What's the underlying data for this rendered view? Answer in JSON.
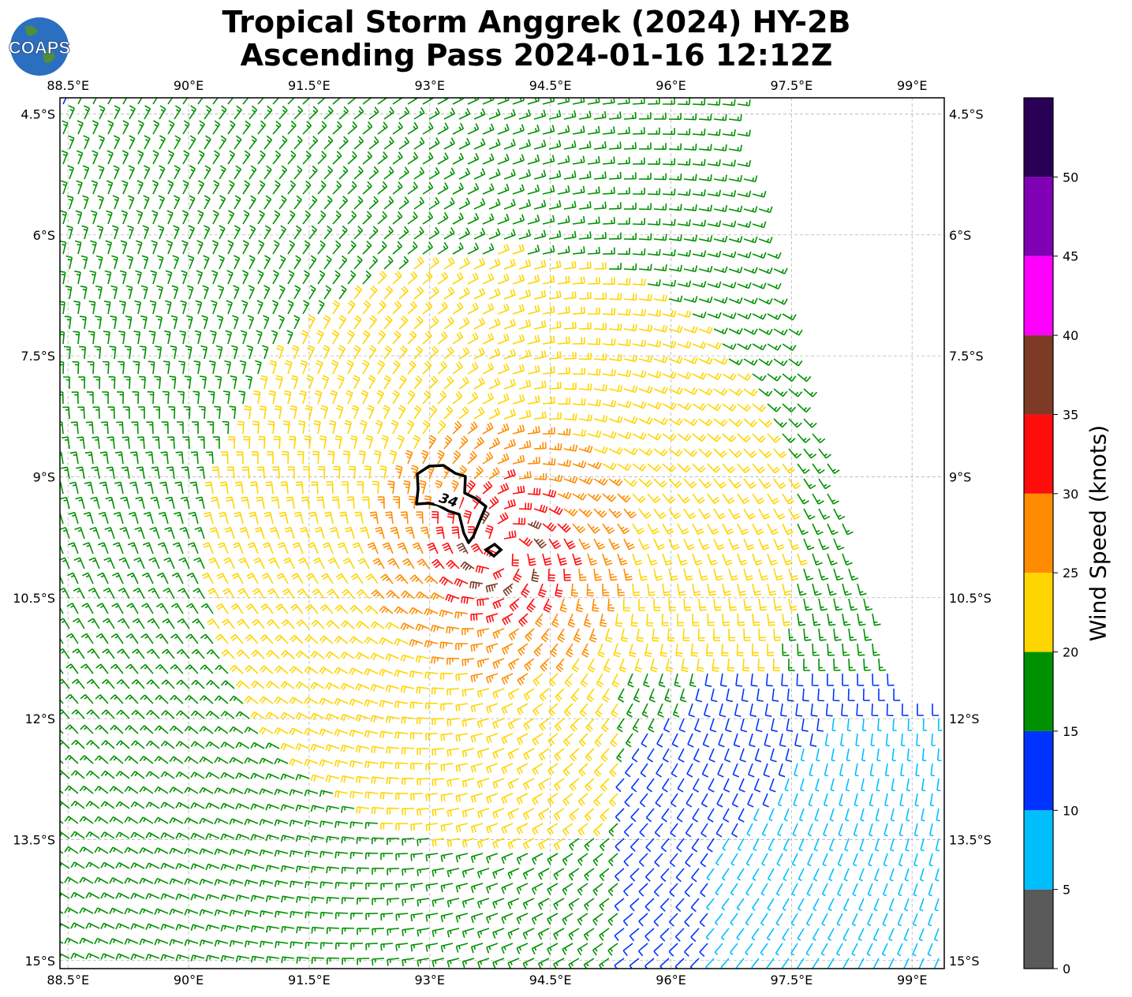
{
  "title": {
    "line1": "Tropical Storm Anggrek (2024) HY-2B",
    "line2": "Ascending Pass 2024-01-16 12:12Z"
  },
  "logo": {
    "text": "COAPS",
    "icon": "globe-icon"
  },
  "map": {
    "lon_range": [
      88.4,
      99.4
    ],
    "lat_range": [
      -15.1,
      -4.3
    ],
    "lon_ticks": [
      "88.5°E",
      "90°E",
      "91.5°E",
      "93°E",
      "94.5°E",
      "96°E",
      "97.5°E",
      "99°E"
    ],
    "lat_ticks": [
      "4.5°S",
      "6°S",
      "7.5°S",
      "9°S",
      "10.5°S",
      "12°S",
      "13.5°S",
      "15°S"
    ],
    "gridlines": true,
    "storm_center": {
      "lon": 93.9,
      "lat": -9.9
    },
    "contour_label": "34",
    "swath_edge_note": "data missing east of swath"
  },
  "colorbar": {
    "label": "Wind Speed (knots)",
    "ticks": [
      "0",
      "5",
      "10",
      "15",
      "20",
      "25",
      "30",
      "35",
      "40",
      "45",
      "50"
    ],
    "bins": [
      {
        "min": 0,
        "max": 5,
        "color": "#595959"
      },
      {
        "min": 5,
        "max": 10,
        "color": "#00bfff"
      },
      {
        "min": 10,
        "max": 15,
        "color": "#0033ff"
      },
      {
        "min": 15,
        "max": 20,
        "color": "#009100"
      },
      {
        "min": 20,
        "max": 25,
        "color": "#ffd500"
      },
      {
        "min": 25,
        "max": 30,
        "color": "#ff8c00"
      },
      {
        "min": 30,
        "max": 35,
        "color": "#ff0d0d"
      },
      {
        "min": 35,
        "max": 40,
        "color": "#7d3a24"
      },
      {
        "min": 40,
        "max": 45,
        "color": "#ff00ff"
      },
      {
        "min": 45,
        "max": 50,
        "color": "#8000b3"
      },
      {
        "min": 50,
        "max": 55,
        "color": "#2a0057"
      }
    ]
  }
}
